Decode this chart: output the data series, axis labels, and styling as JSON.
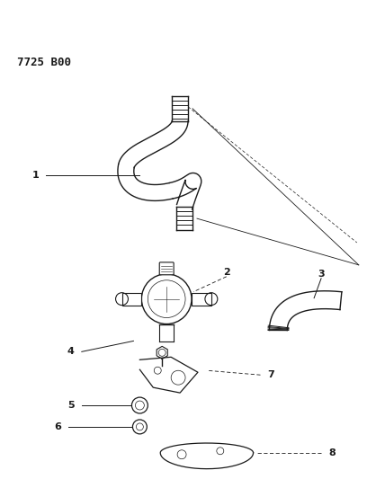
{
  "title": "7725 B00",
  "bg_color": "#ffffff",
  "line_color": "#1a1a1a",
  "figsize": [
    4.28,
    5.33
  ],
  "dpi": 100
}
